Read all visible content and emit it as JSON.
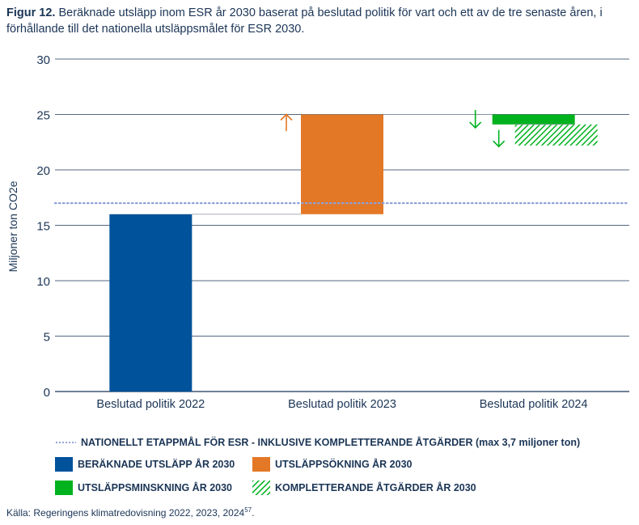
{
  "title": {
    "prefix": "Figur 12.",
    "text": " Beräknade utsläpp inom ESR år 2030 baserat på beslutad politik för vart och ett av de tre senaste åren, i förhållande till det nationella utsläppsmålet för ESR 2030."
  },
  "colors": {
    "blue": "#00529b",
    "orange": "#e37827",
    "green": "#00b21e",
    "target": "#8fa0d8",
    "grid": "#1b3556"
  },
  "chart_data": {
    "type": "bar",
    "subtype": "waterfall",
    "ylabel": "Miljoner ton CO2e",
    "ylim": [
      0,
      30
    ],
    "yticks": [
      0,
      5,
      10,
      15,
      20,
      25,
      30
    ],
    "categories": [
      "Beslutad politik 2022",
      "Beslutad politik 2023",
      "Beslutad politik 2024"
    ],
    "target_line": {
      "value": 17,
      "label": "NATIONELLT ETAPPMÅL FÖR ESR - INKLUSIVE KOMPLETTERANDE ÅTGÄRDER (max 3,7 miljoner ton)"
    },
    "series": [
      {
        "name": "BERÄKNADE UTSLÄPP ÅR 2030",
        "key": "base",
        "color": "#00529b",
        "bars": [
          {
            "category_index": 0,
            "from": 0,
            "to": 16
          }
        ]
      },
      {
        "name": "UTSLÄPPSÖKNING ÅR 2030",
        "key": "increase",
        "color": "#e37827",
        "bars": [
          {
            "category_index": 1,
            "from": 16,
            "to": 25
          }
        ]
      },
      {
        "name": "UTSLÄPPSMINSKNING ÅR 2030",
        "key": "decrease",
        "color": "#00b21e",
        "bars": [
          {
            "category_index": 2,
            "from": 25,
            "to": 24.1
          }
        ]
      },
      {
        "name": "KOMPLETTERANDE ÅTGÄRDER ÅR 2030",
        "key": "complementary",
        "color": "#00b21e",
        "bars": [
          {
            "category_index": 2,
            "from": 24.1,
            "to": 22.2,
            "hatched": true
          }
        ]
      }
    ],
    "arrows": [
      {
        "category_index": 1,
        "direction": "up",
        "color": "#e37827"
      },
      {
        "category_index": 2,
        "direction": "down",
        "color": "#00b21e",
        "near": "decrease"
      },
      {
        "category_index": 2,
        "direction": "down",
        "color": "#00b21e",
        "near": "complementary"
      }
    ],
    "grid": true,
    "legend_position": "bottom"
  },
  "source": {
    "text": "Källa: Regeringens klimatredovisning 2022, 2023, 2024",
    "note": "57",
    "suffix": "."
  }
}
